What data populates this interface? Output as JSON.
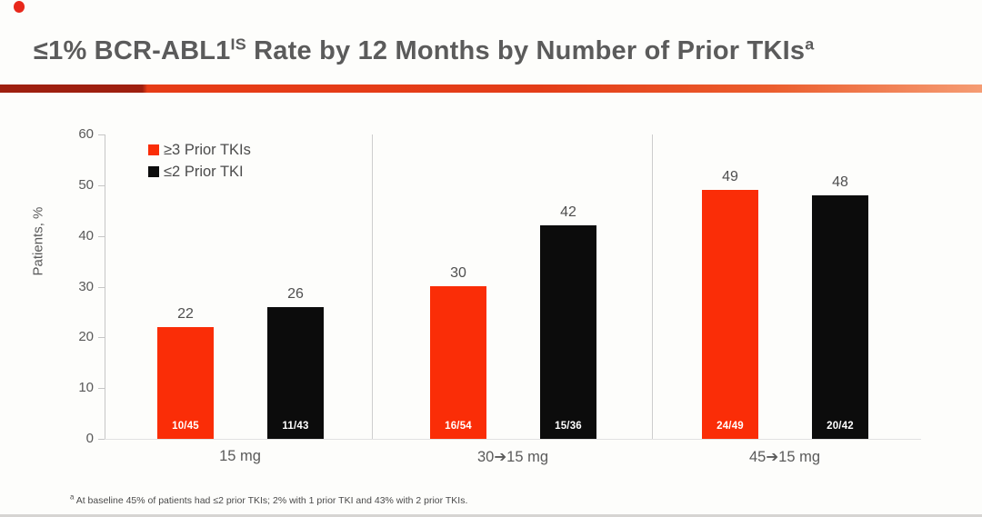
{
  "slide": {
    "background": "#fdfdfb",
    "accent_red": "#e8281b",
    "bar_red": "#fa2d07",
    "bar_black": "#0c0c0c"
  },
  "header": {
    "title_prefix": "≤1% BCR-ABL1",
    "title_sup_is": "IS",
    "title_rest": " Rate by 12 Months by Number of Prior TKIs",
    "title_sup_a": "a"
  },
  "chart_data": {
    "type": "bar",
    "title": "≤1% BCR-ABL1 (IS) Rate by 12 Months by Number of Prior TKIs (a)",
    "xlabel": "",
    "ylabel": "Patients, %",
    "ylim": [
      0,
      60
    ],
    "yticks": [
      0,
      10,
      20,
      30,
      40,
      50,
      60
    ],
    "grid": false,
    "legend_position": "top-left",
    "categories": [
      "15 mg",
      "30➔15 mg",
      "45➔15 mg"
    ],
    "series": [
      {
        "name": "≥3 Prior TKIs",
        "color": "#fa2d07",
        "values": [
          22,
          30,
          49
        ],
        "bar_labels": [
          "10/45",
          "16/54",
          "24/49"
        ]
      },
      {
        "name": "≤2 Prior TKI",
        "color": "#0c0c0c",
        "values": [
          26,
          42,
          48
        ],
        "bar_labels": [
          "11/43",
          "15/36",
          "20/42"
        ]
      }
    ]
  },
  "footnote": {
    "marker": "a",
    "text": " At baseline 45% of patients had ≤2 prior TKIs; 2% with 1 prior TKI and 43% with 2 prior TKIs."
  }
}
